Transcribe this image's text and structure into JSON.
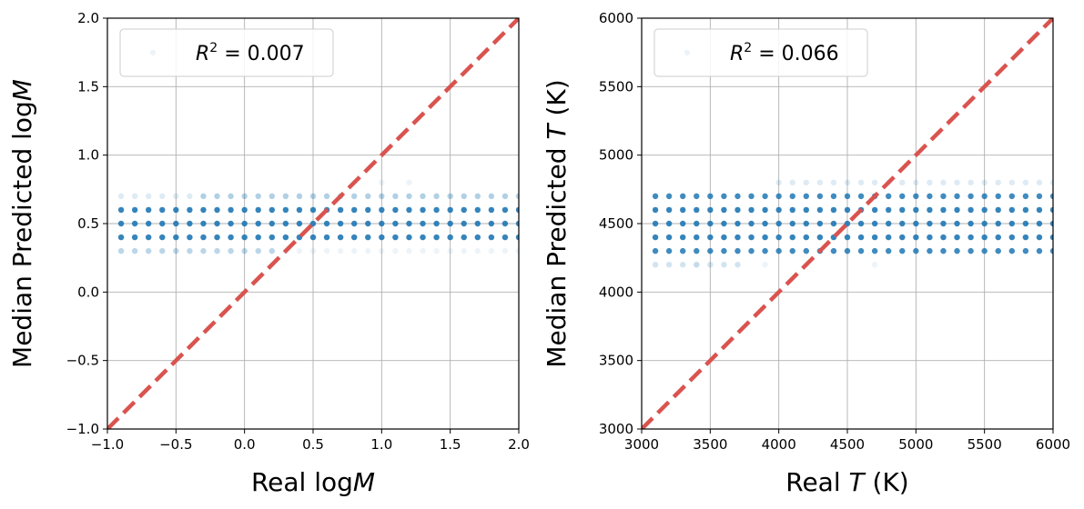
{
  "chart_data": [
    {
      "type": "scatter",
      "id": "logM",
      "xlabel": "Real logM",
      "ylabel": "Median Predicted logM",
      "xlabel_parts": [
        {
          "t": "Real log"
        },
        {
          "t": "M",
          "italic": true
        }
      ],
      "ylabel_parts": [
        {
          "t": "Median Predicted log"
        },
        {
          "t": "M",
          "italic": true
        }
      ],
      "xlim": [
        -1.0,
        2.0
      ],
      "ylim": [
        -1.0,
        2.0
      ],
      "xticks": [
        -1.0,
        -0.5,
        0.0,
        0.5,
        1.0,
        1.5,
        2.0
      ],
      "yticks": [
        -1.0,
        -0.5,
        0.0,
        0.5,
        1.0,
        1.5,
        2.0
      ],
      "xtick_labels": [
        "−1.0",
        "−0.5",
        "0.0",
        "0.5",
        "1.0",
        "1.5",
        "2.0"
      ],
      "ytick_labels": [
        "−1.0",
        "−0.5",
        "0.0",
        "0.5",
        "1.0",
        "1.5",
        "2.0"
      ],
      "grid": true,
      "legend": {
        "placement": "upper-left",
        "label": "R² = 0.007",
        "r2": 0.007
      },
      "identity_line": {
        "from": [
          -1.0,
          -1.0
        ],
        "to": [
          2.0,
          2.0
        ],
        "color": "#d9534f",
        "style": "dashed"
      },
      "point_color": "#1f77b4",
      "x_grid": {
        "start": -0.9,
        "step": 0.1,
        "count": 30
      },
      "series": [
        {
          "y": 0.3,
          "alpha": 0.3,
          "x_faint_gt": 0.2,
          "faint_alpha": 0.08
        },
        {
          "y": 0.4,
          "alpha": 0.9
        },
        {
          "y": 0.5,
          "alpha": 0.9
        },
        {
          "y": 0.6,
          "alpha": 0.9
        },
        {
          "y": 0.7,
          "alpha": 0.35,
          "x_faint_lt": -0.3,
          "faint_alpha": 0.15
        }
      ],
      "scatter_extra": [
        {
          "x": 0.8,
          "y": 0.8,
          "alpha": 0.08
        },
        {
          "x": 1.0,
          "y": 0.8,
          "alpha": 0.08
        },
        {
          "x": 1.2,
          "y": 0.8,
          "alpha": 0.08
        }
      ]
    },
    {
      "type": "scatter",
      "id": "teff",
      "xlabel": "Real T (K)",
      "ylabel": "Median Predicted T (K)",
      "xlabel_parts": [
        {
          "t": "Real "
        },
        {
          "t": "T",
          "italic": true
        },
        {
          "t": " (K)"
        }
      ],
      "ylabel_parts": [
        {
          "t": "Median Predicted "
        },
        {
          "t": "T",
          "italic": true
        },
        {
          "t": " (K)"
        }
      ],
      "xlim": [
        3000,
        6000
      ],
      "ylim": [
        3000,
        6000
      ],
      "xticks": [
        3000,
        3500,
        4000,
        4500,
        5000,
        5500,
        6000
      ],
      "yticks": [
        3000,
        3500,
        4000,
        4500,
        5000,
        5500,
        6000
      ],
      "xtick_labels": [
        "3000",
        "3500",
        "4000",
        "4500",
        "5000",
        "5500",
        "6000"
      ],
      "ytick_labels": [
        "3000",
        "3500",
        "4000",
        "4500",
        "5000",
        "5500",
        "6000"
      ],
      "grid": true,
      "legend": {
        "placement": "upper-left",
        "label": "R² = 0.066",
        "r2": 0.066
      },
      "identity_line": {
        "from": [
          3000,
          3000
        ],
        "to": [
          6000,
          6000
        ],
        "color": "#d9534f",
        "style": "dashed"
      },
      "point_color": "#1f77b4",
      "x_grid": {
        "start": 3100,
        "step": 100,
        "count": 30
      },
      "series": [
        {
          "y": 4200,
          "alpha": 0.2,
          "x_max": 3700
        },
        {
          "y": 4300,
          "alpha": 0.85
        },
        {
          "y": 4400,
          "alpha": 0.9
        },
        {
          "y": 4500,
          "alpha": 0.9
        },
        {
          "y": 4600,
          "alpha": 0.9
        },
        {
          "y": 4700,
          "alpha": 0.85
        },
        {
          "y": 4800,
          "alpha": 0.15,
          "x_min": 4000
        }
      ],
      "scatter_extra": [
        {
          "x": 3400,
          "y": 4200,
          "alpha": 0.08
        },
        {
          "x": 3900,
          "y": 4200,
          "alpha": 0.08
        },
        {
          "x": 4200,
          "y": 4200,
          "alpha": 0.08
        },
        {
          "x": 4700,
          "y": 4200,
          "alpha": 0.08
        }
      ]
    }
  ]
}
